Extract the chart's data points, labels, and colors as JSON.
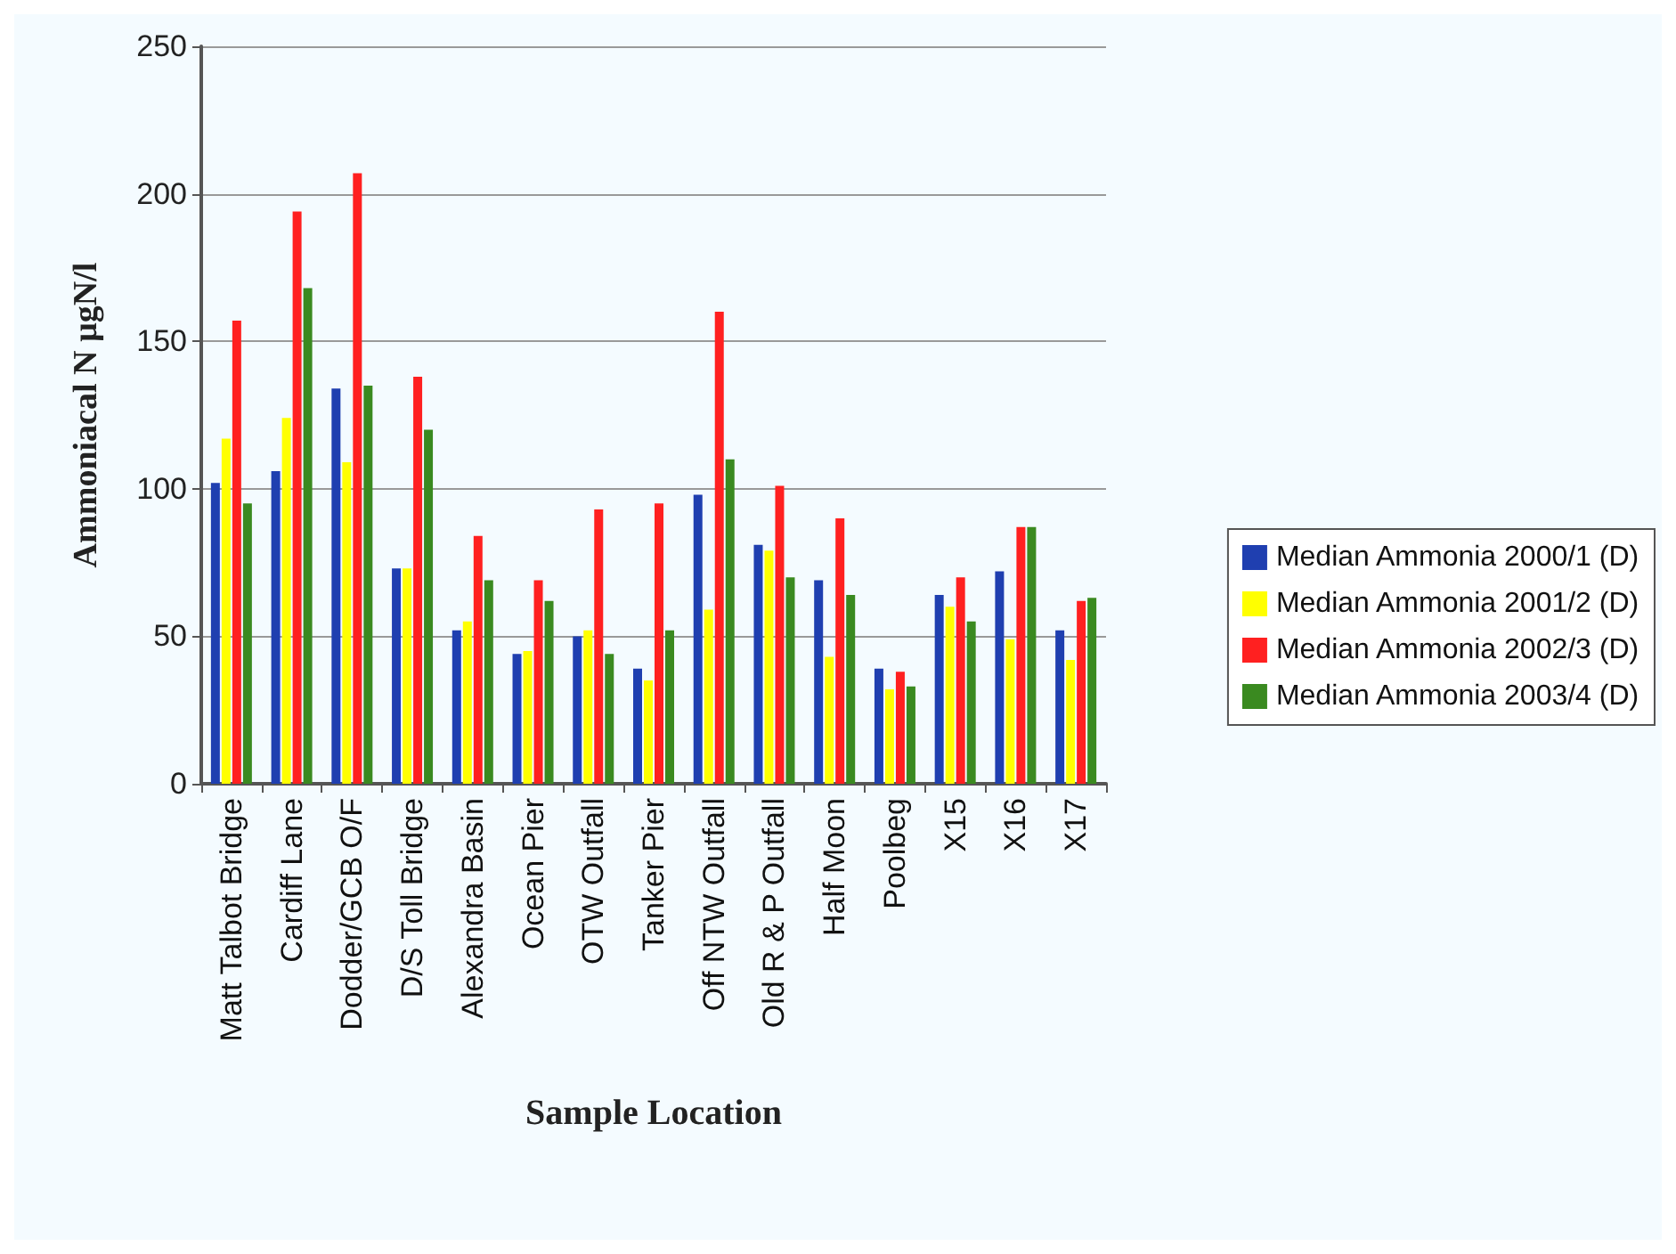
{
  "chart_data": {
    "type": "bar",
    "xlabel": "Sample Location",
    "ylabel": "Ammoniacal N µgN/l",
    "categories": [
      "Matt Talbot Bridge",
      "Cardiff Lane",
      "Dodder/GCB O/F",
      "D/S Toll Bridge",
      "Alexandra Basin",
      "Ocean Pier",
      "OTW Outfall",
      "Tanker Pier",
      "Off NTW Outfall",
      "Old R & P Outfall",
      "Half Moon",
      "Poolbeg",
      "X15",
      "X16",
      "X17"
    ],
    "series": [
      {
        "name": "Median Ammonia 2000/1 (D)",
        "color": "#1f3fb0",
        "values": [
          102,
          106,
          134,
          73,
          52,
          44,
          50,
          39,
          98,
          81,
          69,
          39,
          64,
          72,
          52
        ]
      },
      {
        "name": "Median Ammonia 2001/2 (D)",
        "color": "#ffff00",
        "values": [
          117,
          124,
          109,
          73,
          55,
          45,
          52,
          35,
          59,
          79,
          43,
          32,
          60,
          49,
          42
        ]
      },
      {
        "name": "Median Ammonia 2002/3 (D)",
        "color": "#ff2020",
        "values": [
          157,
          194,
          207,
          138,
          84,
          69,
          93,
          95,
          160,
          101,
          90,
          38,
          70,
          87,
          62
        ]
      },
      {
        "name": "Median Ammonia 2003/4 (D)",
        "color": "#3a8a20",
        "values": [
          95,
          168,
          135,
          120,
          69,
          62,
          44,
          52,
          110,
          70,
          64,
          33,
          55,
          87,
          63
        ]
      }
    ],
    "ylim": [
      0,
      250
    ],
    "yticks": [
      0,
      50,
      100,
      150,
      200,
      250
    ],
    "grid": "y",
    "legend": "right"
  }
}
